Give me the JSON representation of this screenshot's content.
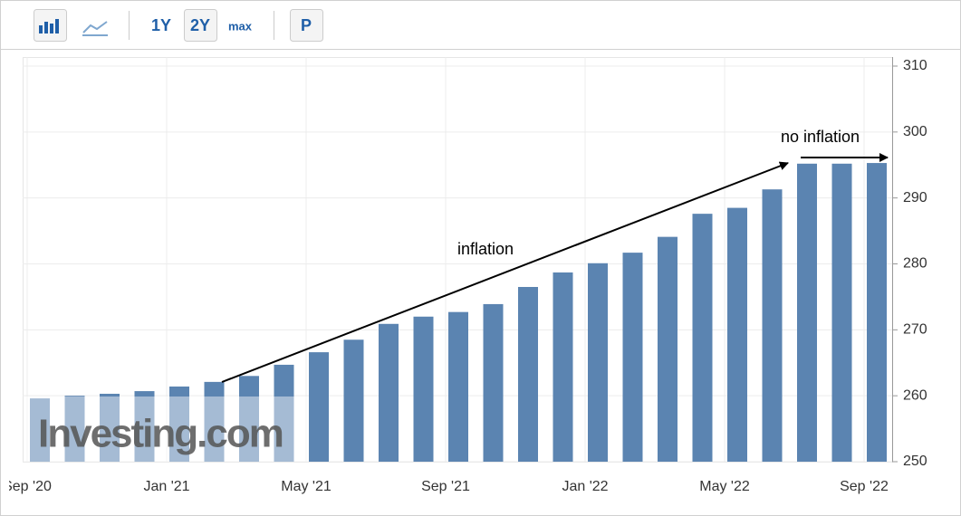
{
  "toolbar": {
    "buttons": [
      "1Y",
      "2Y",
      "max",
      "P"
    ]
  },
  "chart_data": {
    "type": "bar",
    "watermark": "Investing.com",
    "categories": [
      "Sep '20",
      null,
      null,
      null,
      "Jan '21",
      null,
      null,
      null,
      "May '21",
      null,
      null,
      null,
      "Sep '21",
      null,
      null,
      null,
      "Jan '22",
      null,
      null,
      null,
      "May '22",
      null,
      null,
      null,
      "Sep '22"
    ],
    "values": [
      259.6,
      260.0,
      260.3,
      260.7,
      261.4,
      262.1,
      263.0,
      264.7,
      266.6,
      268.5,
      270.9,
      272.0,
      272.7,
      273.9,
      276.5,
      278.7,
      280.1,
      281.7,
      284.1,
      287.6,
      288.5,
      291.3,
      295.2,
      295.2,
      295.3
    ],
    "color": "#5b84b1",
    "ylim": [
      250,
      310
    ],
    "yticks": [
      250,
      260,
      270,
      280,
      290,
      300,
      310
    ],
    "grid": true,
    "annotations": [
      "inflation",
      "no inflation"
    ]
  }
}
